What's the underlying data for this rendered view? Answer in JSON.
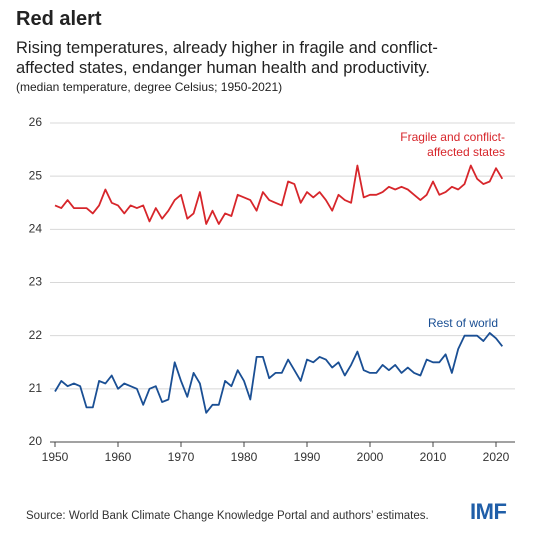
{
  "chart_data": {
    "type": "line",
    "title": "Red alert",
    "subtitle": "Rising temperatures, already higher in fragile and conflict-affected states, endanger human health and productivity.",
    "note": "(median temperature, degree Celsius; 1950-2021)",
    "source": "Source: World Bank Climate Change Knowledge Portal and authors’ estimates.",
    "logo": "IMF",
    "x": [
      1950,
      1951,
      1952,
      1953,
      1954,
      1955,
      1956,
      1957,
      1958,
      1959,
      1960,
      1961,
      1962,
      1963,
      1964,
      1965,
      1966,
      1967,
      1968,
      1969,
      1970,
      1971,
      1972,
      1973,
      1974,
      1975,
      1976,
      1977,
      1978,
      1979,
      1980,
      1981,
      1982,
      1983,
      1984,
      1985,
      1986,
      1987,
      1988,
      1989,
      1990,
      1991,
      1992,
      1993,
      1994,
      1995,
      1996,
      1997,
      1998,
      1999,
      2000,
      2001,
      2002,
      2003,
      2004,
      2005,
      2006,
      2007,
      2008,
      2009,
      2010,
      2011,
      2012,
      2013,
      2014,
      2015,
      2016,
      2017,
      2018,
      2019,
      2020,
      2021
    ],
    "series": [
      {
        "name": "Fragile and conflict-affected states",
        "color": "#d7262b",
        "values": [
          24.45,
          24.4,
          24.55,
          24.4,
          24.4,
          24.4,
          24.3,
          24.45,
          24.75,
          24.5,
          24.45,
          24.3,
          24.45,
          24.4,
          24.45,
          24.15,
          24.4,
          24.2,
          24.35,
          24.55,
          24.65,
          24.2,
          24.3,
          24.7,
          24.1,
          24.35,
          24.1,
          24.3,
          24.25,
          24.65,
          24.6,
          24.55,
          24.35,
          24.7,
          24.55,
          24.5,
          24.45,
          24.9,
          24.85,
          24.5,
          24.7,
          24.6,
          24.7,
          24.55,
          24.35,
          24.65,
          24.55,
          24.5,
          25.2,
          24.6,
          24.65,
          24.65,
          24.7,
          24.8,
          24.75,
          24.8,
          24.75,
          24.65,
          24.55,
          24.65,
          24.9,
          24.65,
          24.7,
          24.8,
          24.75,
          24.85,
          25.2,
          24.95,
          24.85,
          24.9,
          25.15,
          24.95
        ]
      },
      {
        "name": "Rest of world",
        "color": "#1a4f94",
        "values": [
          20.95,
          21.15,
          21.05,
          21.1,
          21.05,
          20.65,
          20.65,
          21.15,
          21.1,
          21.25,
          21.0,
          21.1,
          21.05,
          21.0,
          20.7,
          21.0,
          21.05,
          20.75,
          20.8,
          21.5,
          21.15,
          20.85,
          21.3,
          21.1,
          20.55,
          20.7,
          20.7,
          21.15,
          21.05,
          21.35,
          21.15,
          20.8,
          21.6,
          21.6,
          21.2,
          21.3,
          21.3,
          21.55,
          21.35,
          21.15,
          21.55,
          21.5,
          21.6,
          21.55,
          21.4,
          21.5,
          21.25,
          21.45,
          21.7,
          21.35,
          21.3,
          21.3,
          21.45,
          21.35,
          21.45,
          21.3,
          21.4,
          21.3,
          21.25,
          21.55,
          21.5,
          21.5,
          21.65,
          21.3,
          21.75,
          22.0,
          22.0,
          22.0,
          21.9,
          22.05,
          21.95,
          21.8
        ]
      }
    ],
    "xlim": [
      1950,
      2021
    ],
    "xticks": [
      1950,
      1960,
      1970,
      1980,
      1990,
      2000,
      2010,
      2020
    ],
    "ylim": [
      20,
      26
    ],
    "yticks": [
      20,
      21,
      22,
      23,
      24,
      25,
      26
    ],
    "grid": true
  }
}
